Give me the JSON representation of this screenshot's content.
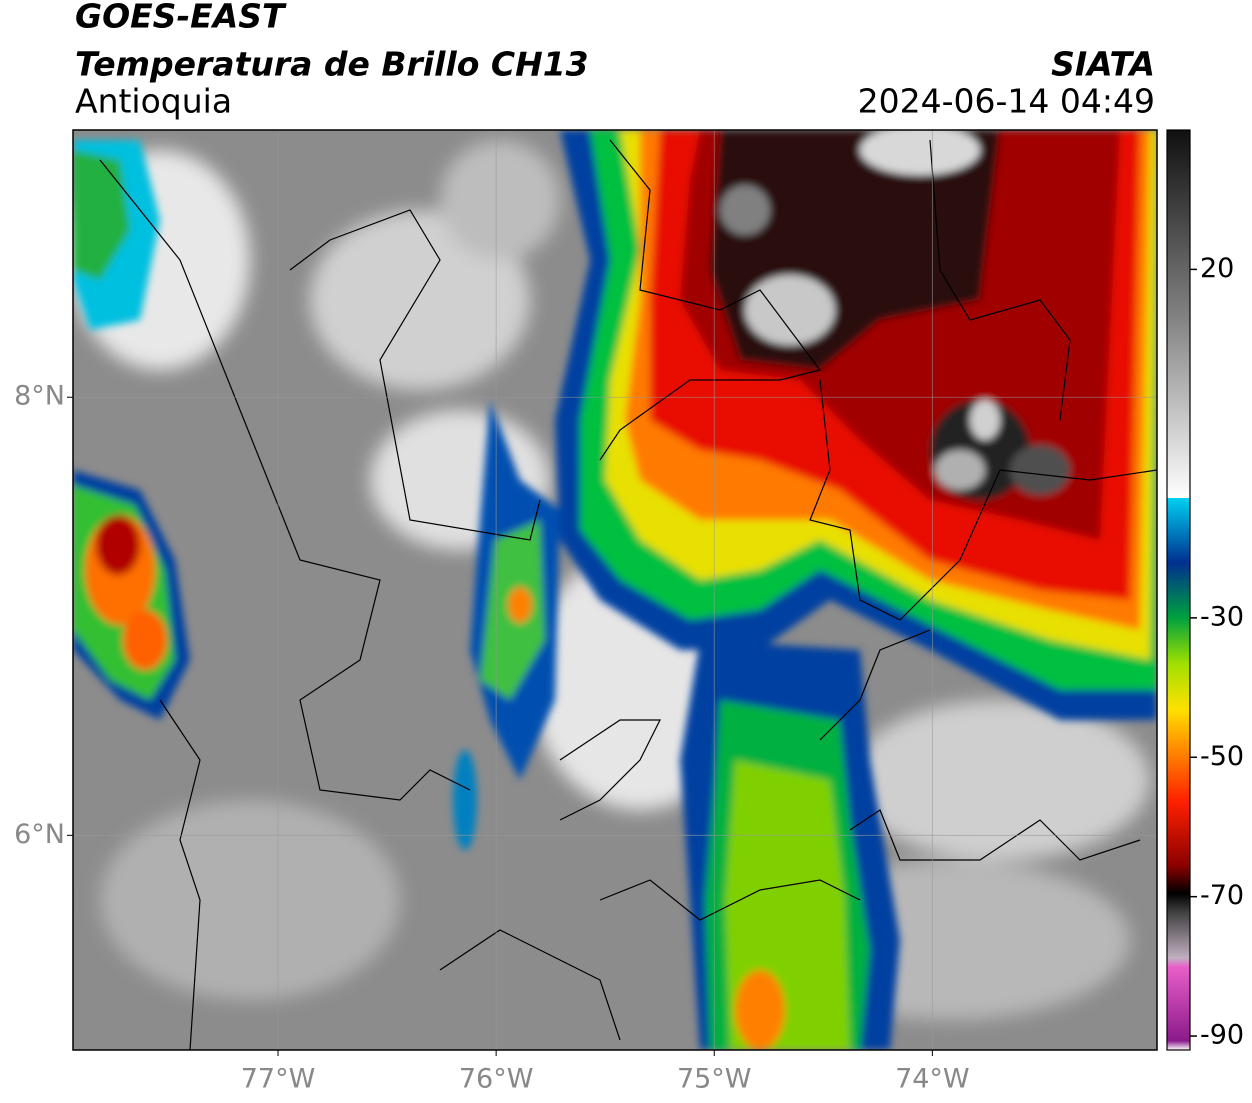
{
  "header": {
    "title": "GOES-EAST",
    "subtitle": "Temperatura de Brillo CH13",
    "region": "Antioquia",
    "source": "SIATA",
    "datetime": "2024-06-14 04:49"
  },
  "map": {
    "xlim": [
      -77.94,
      -72.97
    ],
    "ylim": [
      5.02,
      9.22
    ],
    "xticks": [
      {
        "value": -77,
        "label": "77°W"
      },
      {
        "value": -76,
        "label": "76°W"
      },
      {
        "value": -75,
        "label": "75°W"
      },
      {
        "value": -74,
        "label": "74°W"
      }
    ],
    "yticks": [
      {
        "value": 6,
        "label": "6°N"
      },
      {
        "value": 8,
        "label": "8°N"
      }
    ],
    "grid": true
  },
  "colorbar": {
    "lim": [
      -92,
      40
    ],
    "ticks": [
      20,
      -30,
      -50,
      -70,
      -90
    ]
  }
}
